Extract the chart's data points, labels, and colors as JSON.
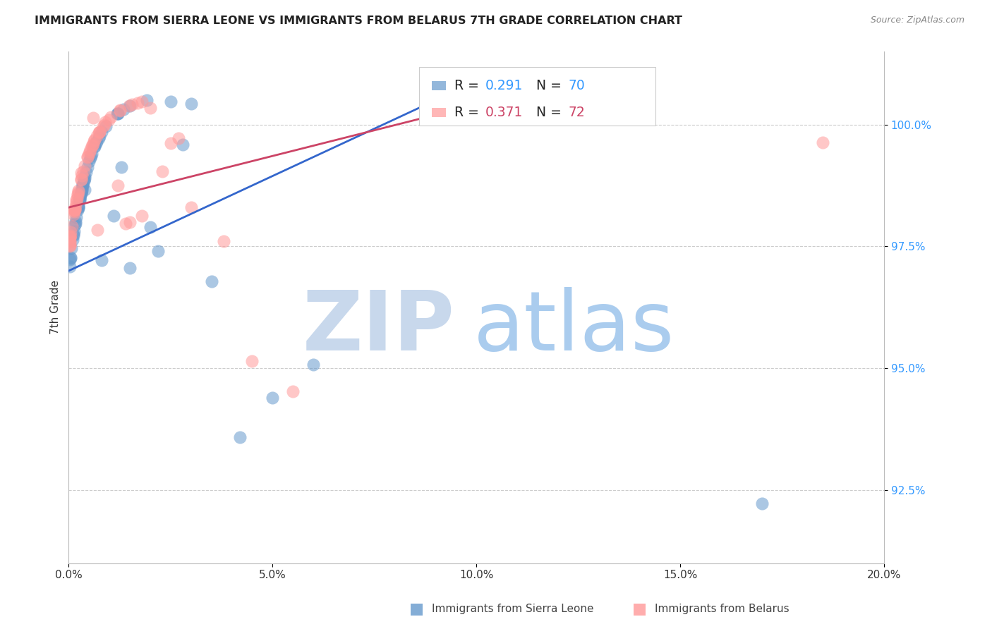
{
  "title": "IMMIGRANTS FROM SIERRA LEONE VS IMMIGRANTS FROM BELARUS 7TH GRADE CORRELATION CHART",
  "source": "Source: ZipAtlas.com",
  "ylabel": "7th Grade",
  "xlim": [
    0.0,
    20.0
  ],
  "ylim": [
    91.0,
    101.5
  ],
  "ytick_values": [
    92.5,
    95.0,
    97.5,
    100.0
  ],
  "xtick_positions": [
    0.0,
    5.0,
    10.0,
    15.0,
    20.0
  ],
  "xtick_labels": [
    "0.0%",
    "5.0%",
    "10.0%",
    "15.0%",
    "20.0%"
  ],
  "legend_r1": "0.291",
  "legend_n1": "70",
  "legend_r2": "0.371",
  "legend_n2": "72",
  "color_sierra": "#6699CC",
  "color_belarus": "#FF9999",
  "color_sierra_line": "#3366CC",
  "color_belarus_line": "#CC4466",
  "color_ytick": "#3399FF",
  "color_title": "#222222",
  "color_source": "#888888",
  "color_ylabel": "#333333",
  "color_xtick": "#333333",
  "watermark_color_zip": "#C8D8EC",
  "watermark_color_atlas": "#AACCEE"
}
